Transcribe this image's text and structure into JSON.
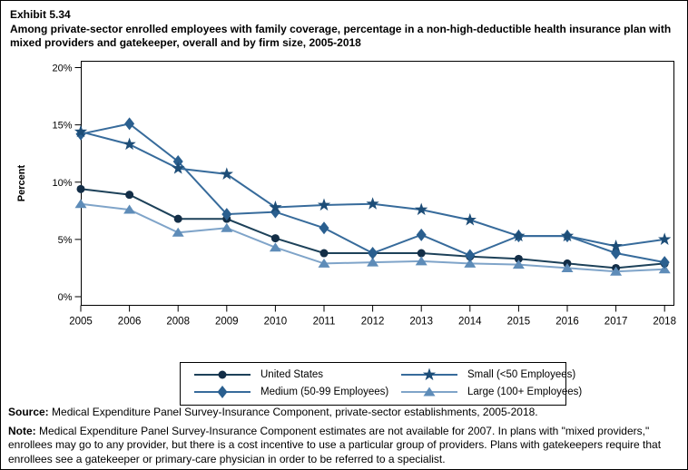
{
  "exhibit": {
    "number": "Exhibit 5.34",
    "title": "Among private-sector enrolled employees with family coverage, percentage in a non-high-deductible health insurance plan with mixed providers and gatekeeper, overall and by firm size, 2005-2018"
  },
  "chart_data": {
    "type": "line",
    "title": "",
    "xlabel": "",
    "ylabel": "Percent",
    "ylim": [
      0,
      20
    ],
    "ytick_values": [
      0,
      5,
      10,
      15,
      20
    ],
    "ytick_labels": [
      "0%",
      "5%",
      "10%",
      "15%",
      "20%"
    ],
    "grid": false,
    "legend_position": "bottom",
    "categories": [
      "2005",
      "2006",
      "2008",
      "2009",
      "2010",
      "2011",
      "2012",
      "2013",
      "2014",
      "2015",
      "2016",
      "2017",
      "2018"
    ],
    "series": [
      {
        "name": "United States",
        "marker": "circle-icon",
        "marker_color": "#132e47",
        "line_color": "#1d4159",
        "values": [
          9.4,
          8.9,
          6.8,
          6.8,
          5.1,
          3.8,
          3.8,
          3.8,
          3.5,
          3.3,
          2.9,
          2.5,
          2.9
        ]
      },
      {
        "name": "Small (<50 Employees)",
        "marker": "star-icon",
        "marker_color": "#1d4d77",
        "line_color": "#376b9b",
        "values": [
          14.4,
          13.3,
          11.2,
          10.7,
          7.8,
          8.0,
          8.1,
          7.6,
          6.7,
          5.3,
          5.3,
          4.4,
          5.0
        ]
      },
      {
        "name": "Medium (50-99 Employees)",
        "marker": "diamond-icon",
        "marker_color": "#2a5f8f",
        "line_color": "#376b9b",
        "values": [
          14.2,
          15.1,
          11.8,
          7.2,
          7.4,
          6.0,
          3.8,
          5.4,
          3.6,
          5.3,
          5.3,
          3.8,
          3.0
        ]
      },
      {
        "name": "Large (100+ Employees)",
        "marker": "triangle-icon",
        "marker_color": "#5e8cb8",
        "line_color": "#7fa4c9",
        "values": [
          8.1,
          7.6,
          5.6,
          6.0,
          4.3,
          2.9,
          3.0,
          3.1,
          2.9,
          2.8,
          2.5,
          2.2,
          2.4
        ]
      }
    ],
    "axis_color": "#000000"
  },
  "footer": {
    "source_label": "Source:",
    "source_text": " Medical Expenditure Panel Survey-Insurance Component, private-sector establishments, 2005-2018.",
    "note_label": "Note:",
    "note_text": " Medical Expenditure Panel Survey-Insurance Component estimates are not available for 2007. In plans with \"mixed providers,\" enrollees may go to any provider, but there is a cost incentive to use a particular group of providers. Plans with gatekeepers require that enrollees see a gatekeeper or primary-care physician in order to be referred to a specialist."
  }
}
